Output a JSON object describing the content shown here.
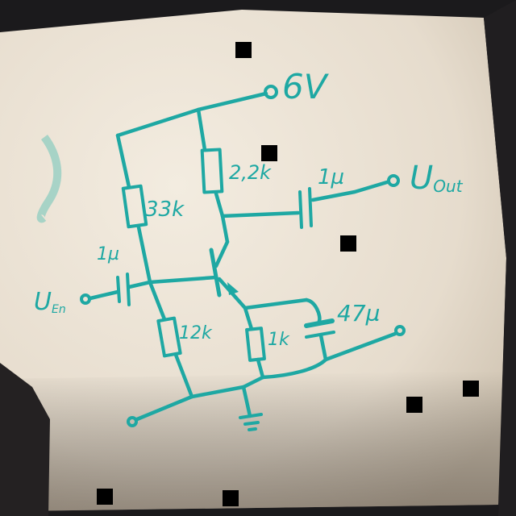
{
  "diagram": {
    "title": "hand-drawn common-emitter transistor amplifier on paper",
    "supply_label": "6V",
    "input_label": "U",
    "input_sub": "En",
    "output_label": "U",
    "output_sub": "Out",
    "components": {
      "r_top_bias": "33k",
      "r_bottom_bias": "12k",
      "r_collector": "2,2k",
      "r_emitter": "1k",
      "c_input": "1µ",
      "c_output": "1µ",
      "c_emitter": "47µ"
    }
  },
  "colors": {
    "ink": "#1ea8a3",
    "paper": "#efe7da",
    "background": "#1b1a1c"
  }
}
